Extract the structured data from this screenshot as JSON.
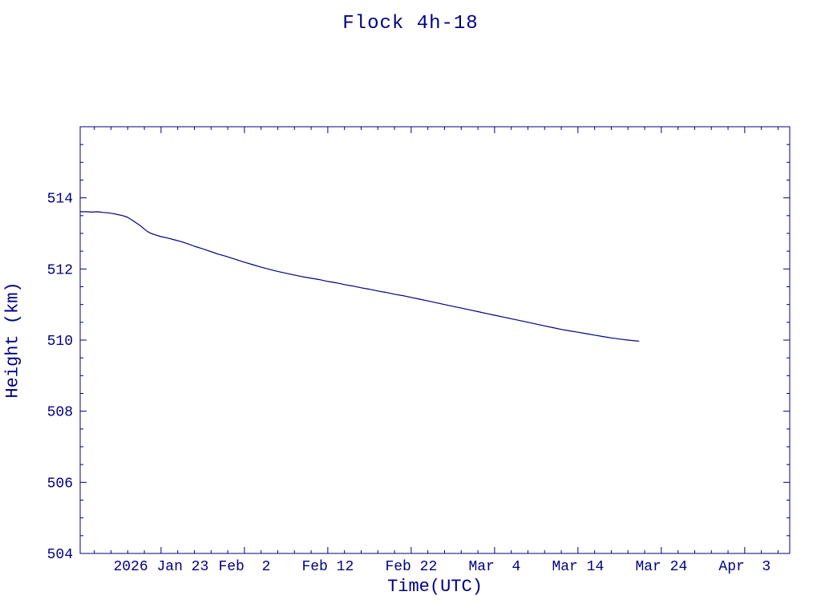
{
  "chart_data": {
    "type": "line",
    "title": "Flock 4h-18",
    "xlabel": "Time(UTC)",
    "ylabel": "Height (km)",
    "x_units": "day of year 2026",
    "xlim": [
      13.3,
      98.4
    ],
    "ylim": [
      504,
      516
    ],
    "grid": false,
    "legend": "none",
    "axis_color": "#000080",
    "line_color": "#000080",
    "x_minor_step": 2,
    "y_minor_step": 0.5,
    "xticks": [
      {
        "v": 23,
        "label": "2026 Jan 23"
      },
      {
        "v": 33,
        "label": "Feb  2"
      },
      {
        "v": 43,
        "label": "Feb 12"
      },
      {
        "v": 53,
        "label": "Feb 22"
      },
      {
        "v": 63,
        "label": "Mar  4"
      },
      {
        "v": 73,
        "label": "Mar 14"
      },
      {
        "v": 83,
        "label": "Mar 24"
      },
      {
        "v": 93,
        "label": "Apr  3"
      }
    ],
    "yticks": [
      {
        "v": 504,
        "label": "504"
      },
      {
        "v": 506,
        "label": "506"
      },
      {
        "v": 508,
        "label": "508"
      },
      {
        "v": 510,
        "label": "510"
      },
      {
        "v": 512,
        "label": "512"
      },
      {
        "v": 514,
        "label": "514"
      }
    ],
    "series": [
      {
        "name": "height_km",
        "points": [
          [
            13.3,
            513.61
          ],
          [
            14.0,
            513.61
          ],
          [
            14.7,
            513.6
          ],
          [
            15.4,
            513.61
          ],
          [
            16.0,
            513.59
          ],
          [
            16.6,
            513.58
          ],
          [
            17.2,
            513.56
          ],
          [
            17.8,
            513.53
          ],
          [
            18.4,
            513.5
          ],
          [
            19.0,
            513.45
          ],
          [
            19.5,
            513.38
          ],
          [
            20.0,
            513.3
          ],
          [
            20.5,
            513.22
          ],
          [
            21.0,
            513.12
          ],
          [
            21.4,
            513.05
          ],
          [
            21.8,
            513.0
          ],
          [
            22.3,
            512.96
          ],
          [
            23.0,
            512.91
          ],
          [
            23.8,
            512.87
          ],
          [
            24.6,
            512.82
          ],
          [
            25.4,
            512.77
          ],
          [
            26.2,
            512.71
          ],
          [
            27.0,
            512.64
          ],
          [
            27.8,
            512.58
          ],
          [
            28.6,
            512.52
          ],
          [
            29.2,
            512.47
          ],
          [
            29.8,
            512.42
          ],
          [
            30.6,
            512.37
          ],
          [
            31.4,
            512.31
          ],
          [
            32.2,
            512.25
          ],
          [
            33.0,
            512.19
          ],
          [
            34.0,
            512.12
          ],
          [
            35.0,
            512.05
          ],
          [
            36.0,
            511.99
          ],
          [
            37.0,
            511.93
          ],
          [
            38.0,
            511.88
          ],
          [
            39.0,
            511.83
          ],
          [
            40.0,
            511.78
          ],
          [
            41.0,
            511.74
          ],
          [
            42.0,
            511.7
          ],
          [
            43.0,
            511.65
          ],
          [
            44.0,
            511.61
          ],
          [
            45.0,
            511.56
          ],
          [
            46.0,
            511.52
          ],
          [
            47.0,
            511.47
          ],
          [
            48.0,
            511.43
          ],
          [
            49.0,
            511.38
          ],
          [
            50.0,
            511.34
          ],
          [
            51.0,
            511.29
          ],
          [
            52.0,
            511.25
          ],
          [
            53.0,
            511.2
          ],
          [
            54.0,
            511.15
          ],
          [
            55.0,
            511.1
          ],
          [
            56.0,
            511.05
          ],
          [
            57.0,
            511.0
          ],
          [
            58.0,
            510.95
          ],
          [
            59.0,
            510.9
          ],
          [
            60.0,
            510.85
          ],
          [
            61.0,
            510.8
          ],
          [
            62.0,
            510.75
          ],
          [
            63.0,
            510.7
          ],
          [
            64.0,
            510.65
          ],
          [
            65.0,
            510.6
          ],
          [
            66.0,
            510.55
          ],
          [
            67.0,
            510.5
          ],
          [
            68.0,
            510.45
          ],
          [
            69.0,
            510.4
          ],
          [
            70.0,
            510.35
          ],
          [
            71.0,
            510.3
          ],
          [
            72.0,
            510.26
          ],
          [
            73.0,
            510.22
          ],
          [
            74.0,
            510.18
          ],
          [
            75.0,
            510.14
          ],
          [
            76.0,
            510.1
          ],
          [
            77.0,
            510.06
          ],
          [
            78.0,
            510.03
          ],
          [
            79.0,
            510.0
          ],
          [
            79.8,
            509.98
          ],
          [
            80.3,
            509.97
          ]
        ]
      }
    ]
  }
}
